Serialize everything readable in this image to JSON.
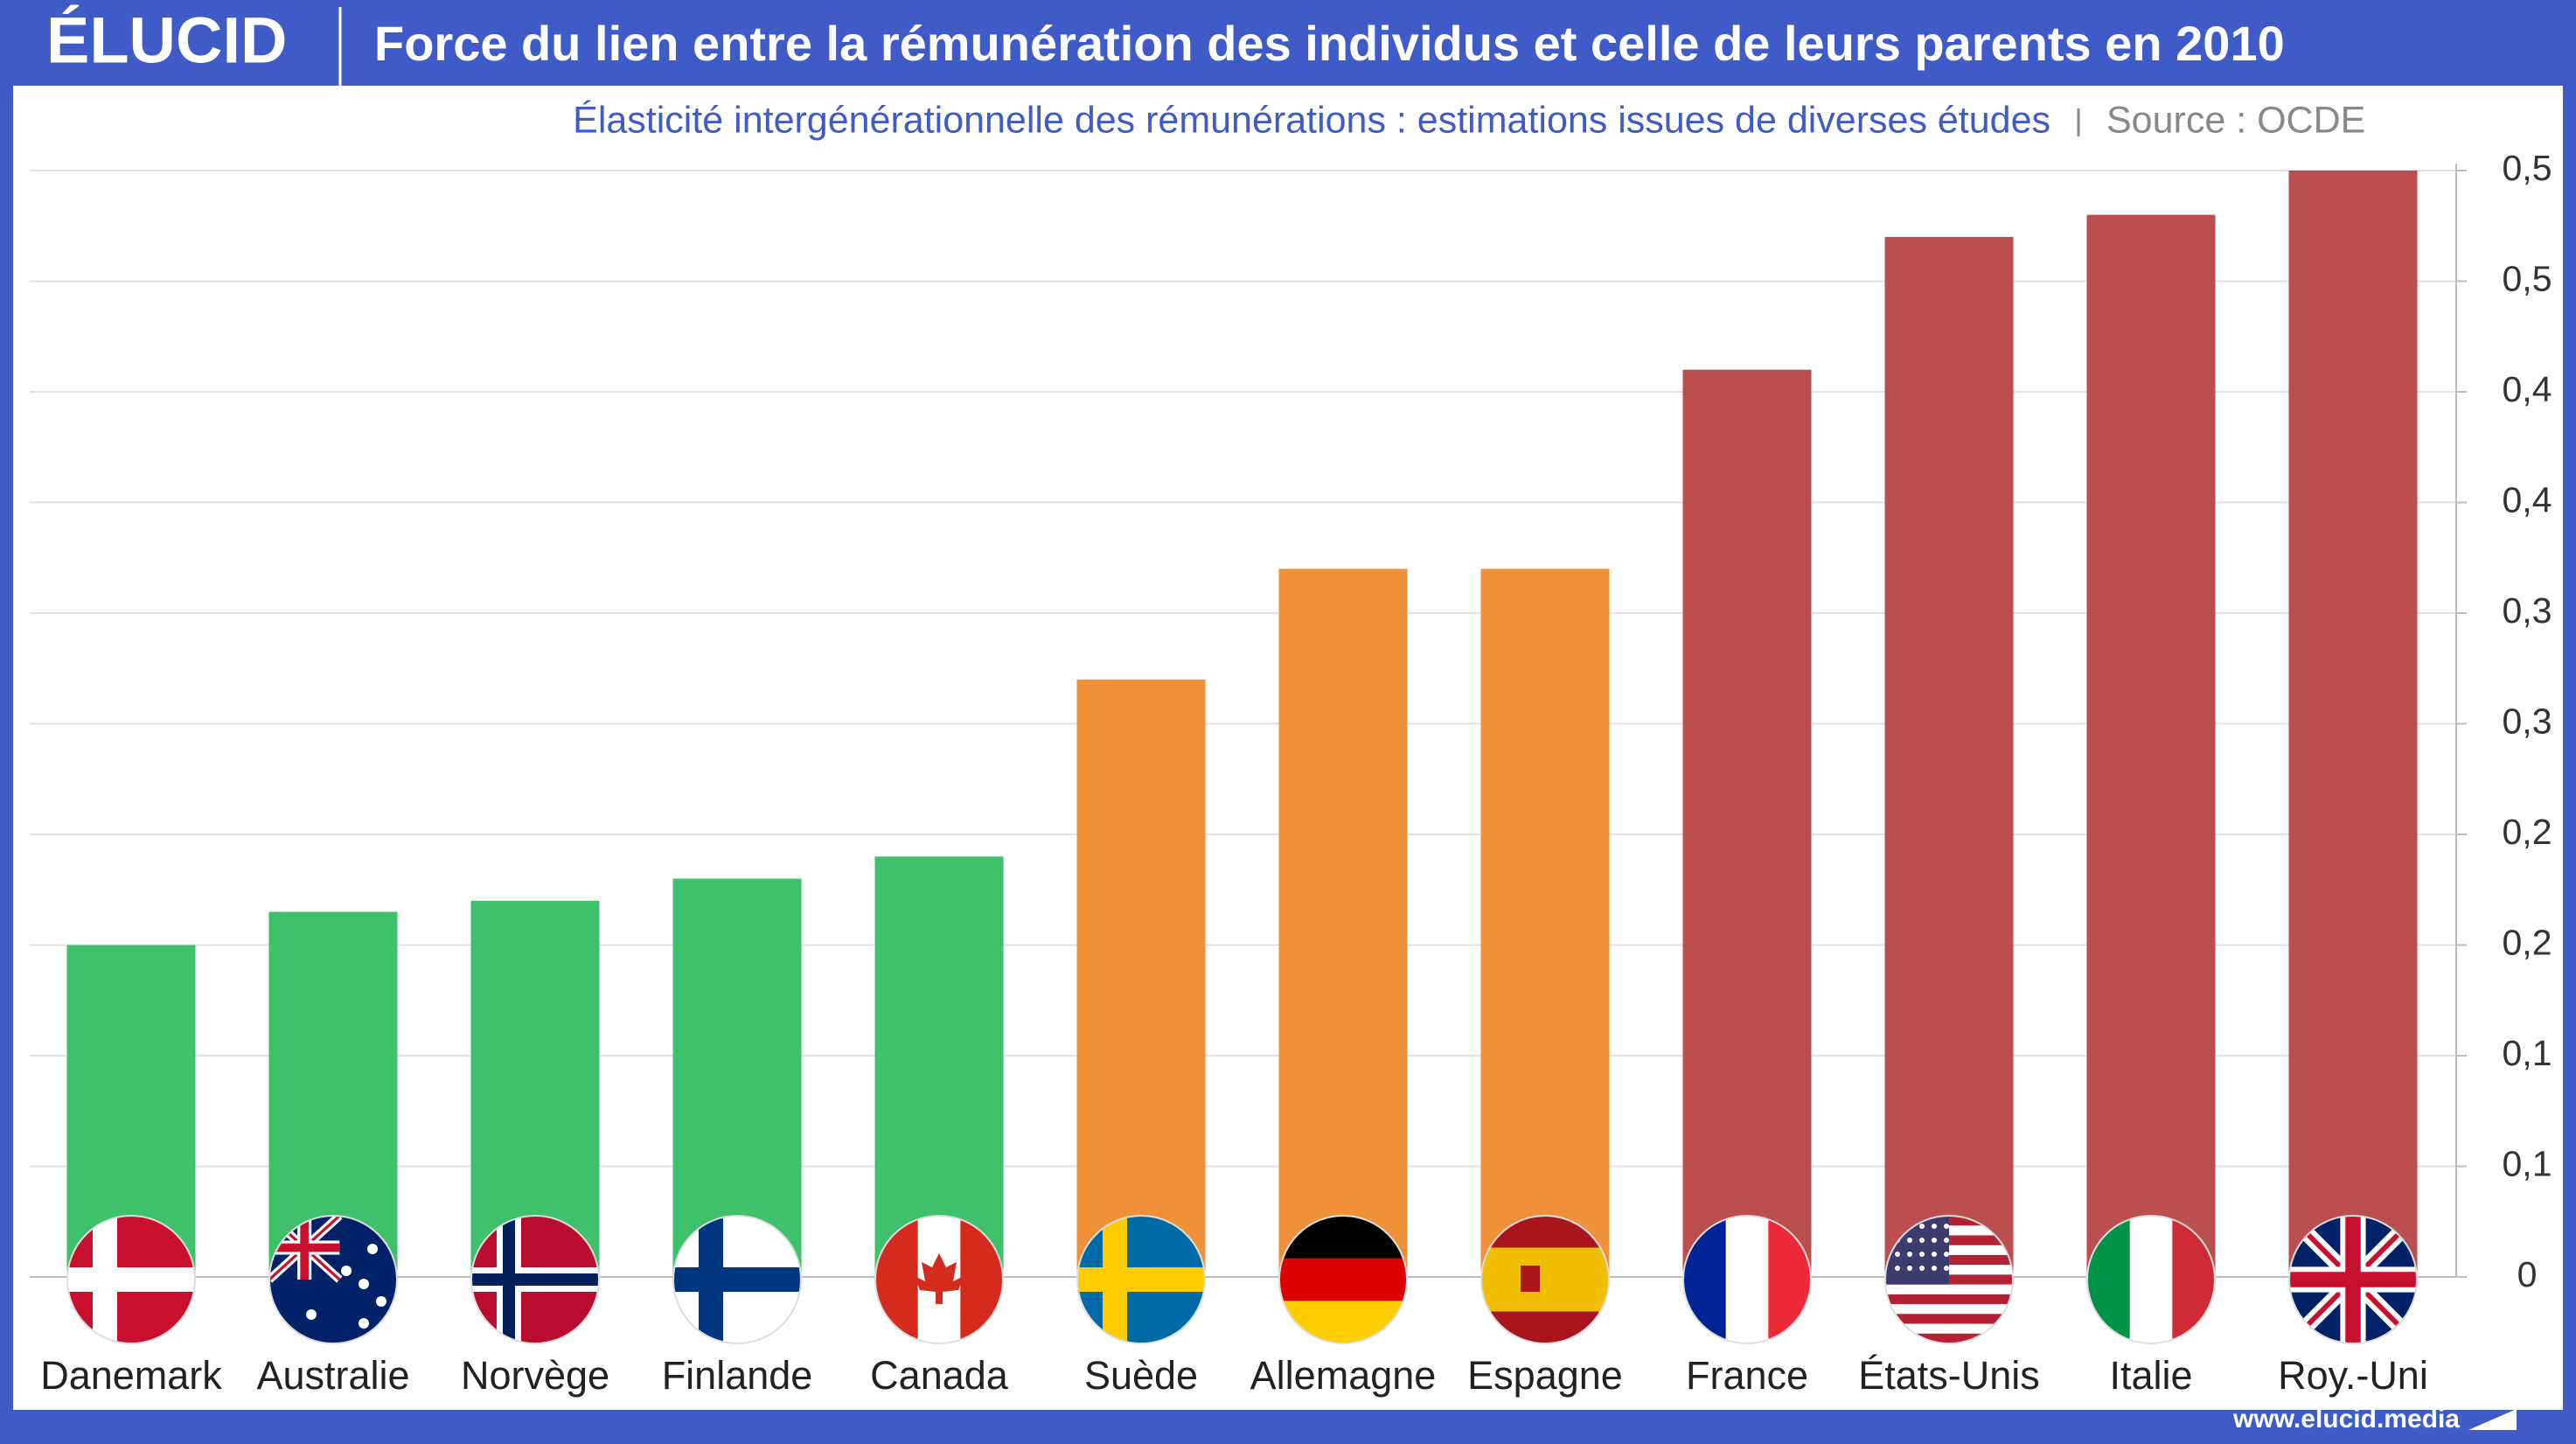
{
  "header": {
    "logo": "ÉLUCID",
    "title": "Force du lien entre la rémunération des individus et celle de leurs parents en 2010"
  },
  "chart_data": {
    "type": "bar",
    "subtitle": "Élasticité intergénérationnelle des rémunérations : estimations issues de diverses études",
    "source": "Source : OCDE",
    "categories": [
      "Danemark",
      "Australie",
      "Norvège",
      "Finlande",
      "Canada",
      "Suède",
      "Allemagne",
      "Espagne",
      "France",
      "États-Unis",
      "Italie",
      "Roy.-Uni"
    ],
    "values": [
      0.15,
      0.165,
      0.17,
      0.18,
      0.19,
      0.27,
      0.32,
      0.32,
      0.41,
      0.47,
      0.48,
      0.5
    ],
    "colors": [
      "#3ec16a",
      "#3ec16a",
      "#3ec16a",
      "#3ec16a",
      "#3ec16a",
      "#f0913a",
      "#f0913a",
      "#f0913a",
      "#bb4f50",
      "#bb4f50",
      "#bb4f50",
      "#bb4f50"
    ],
    "ylim": [
      0,
      0.5
    ],
    "yticks": [
      0,
      {
        "value": 0.05,
        "label": "0,1"
      },
      {
        "value": 0.1,
        "label": "0,1"
      },
      {
        "value": 0.15,
        "label": "0,2"
      },
      {
        "value": 0.2,
        "label": "0,2"
      },
      {
        "value": 0.25,
        "label": "0,3"
      },
      {
        "value": 0.3,
        "label": "0,3"
      },
      {
        "value": 0.35,
        "label": "0,4"
      },
      {
        "value": 0.4,
        "label": "0,4"
      },
      {
        "value": 0.45,
        "label": "0,5"
      },
      {
        "value": 0.5,
        "label": "0,5"
      }
    ],
    "grid": true
  },
  "footer": {
    "url": "www.elucid.media"
  }
}
